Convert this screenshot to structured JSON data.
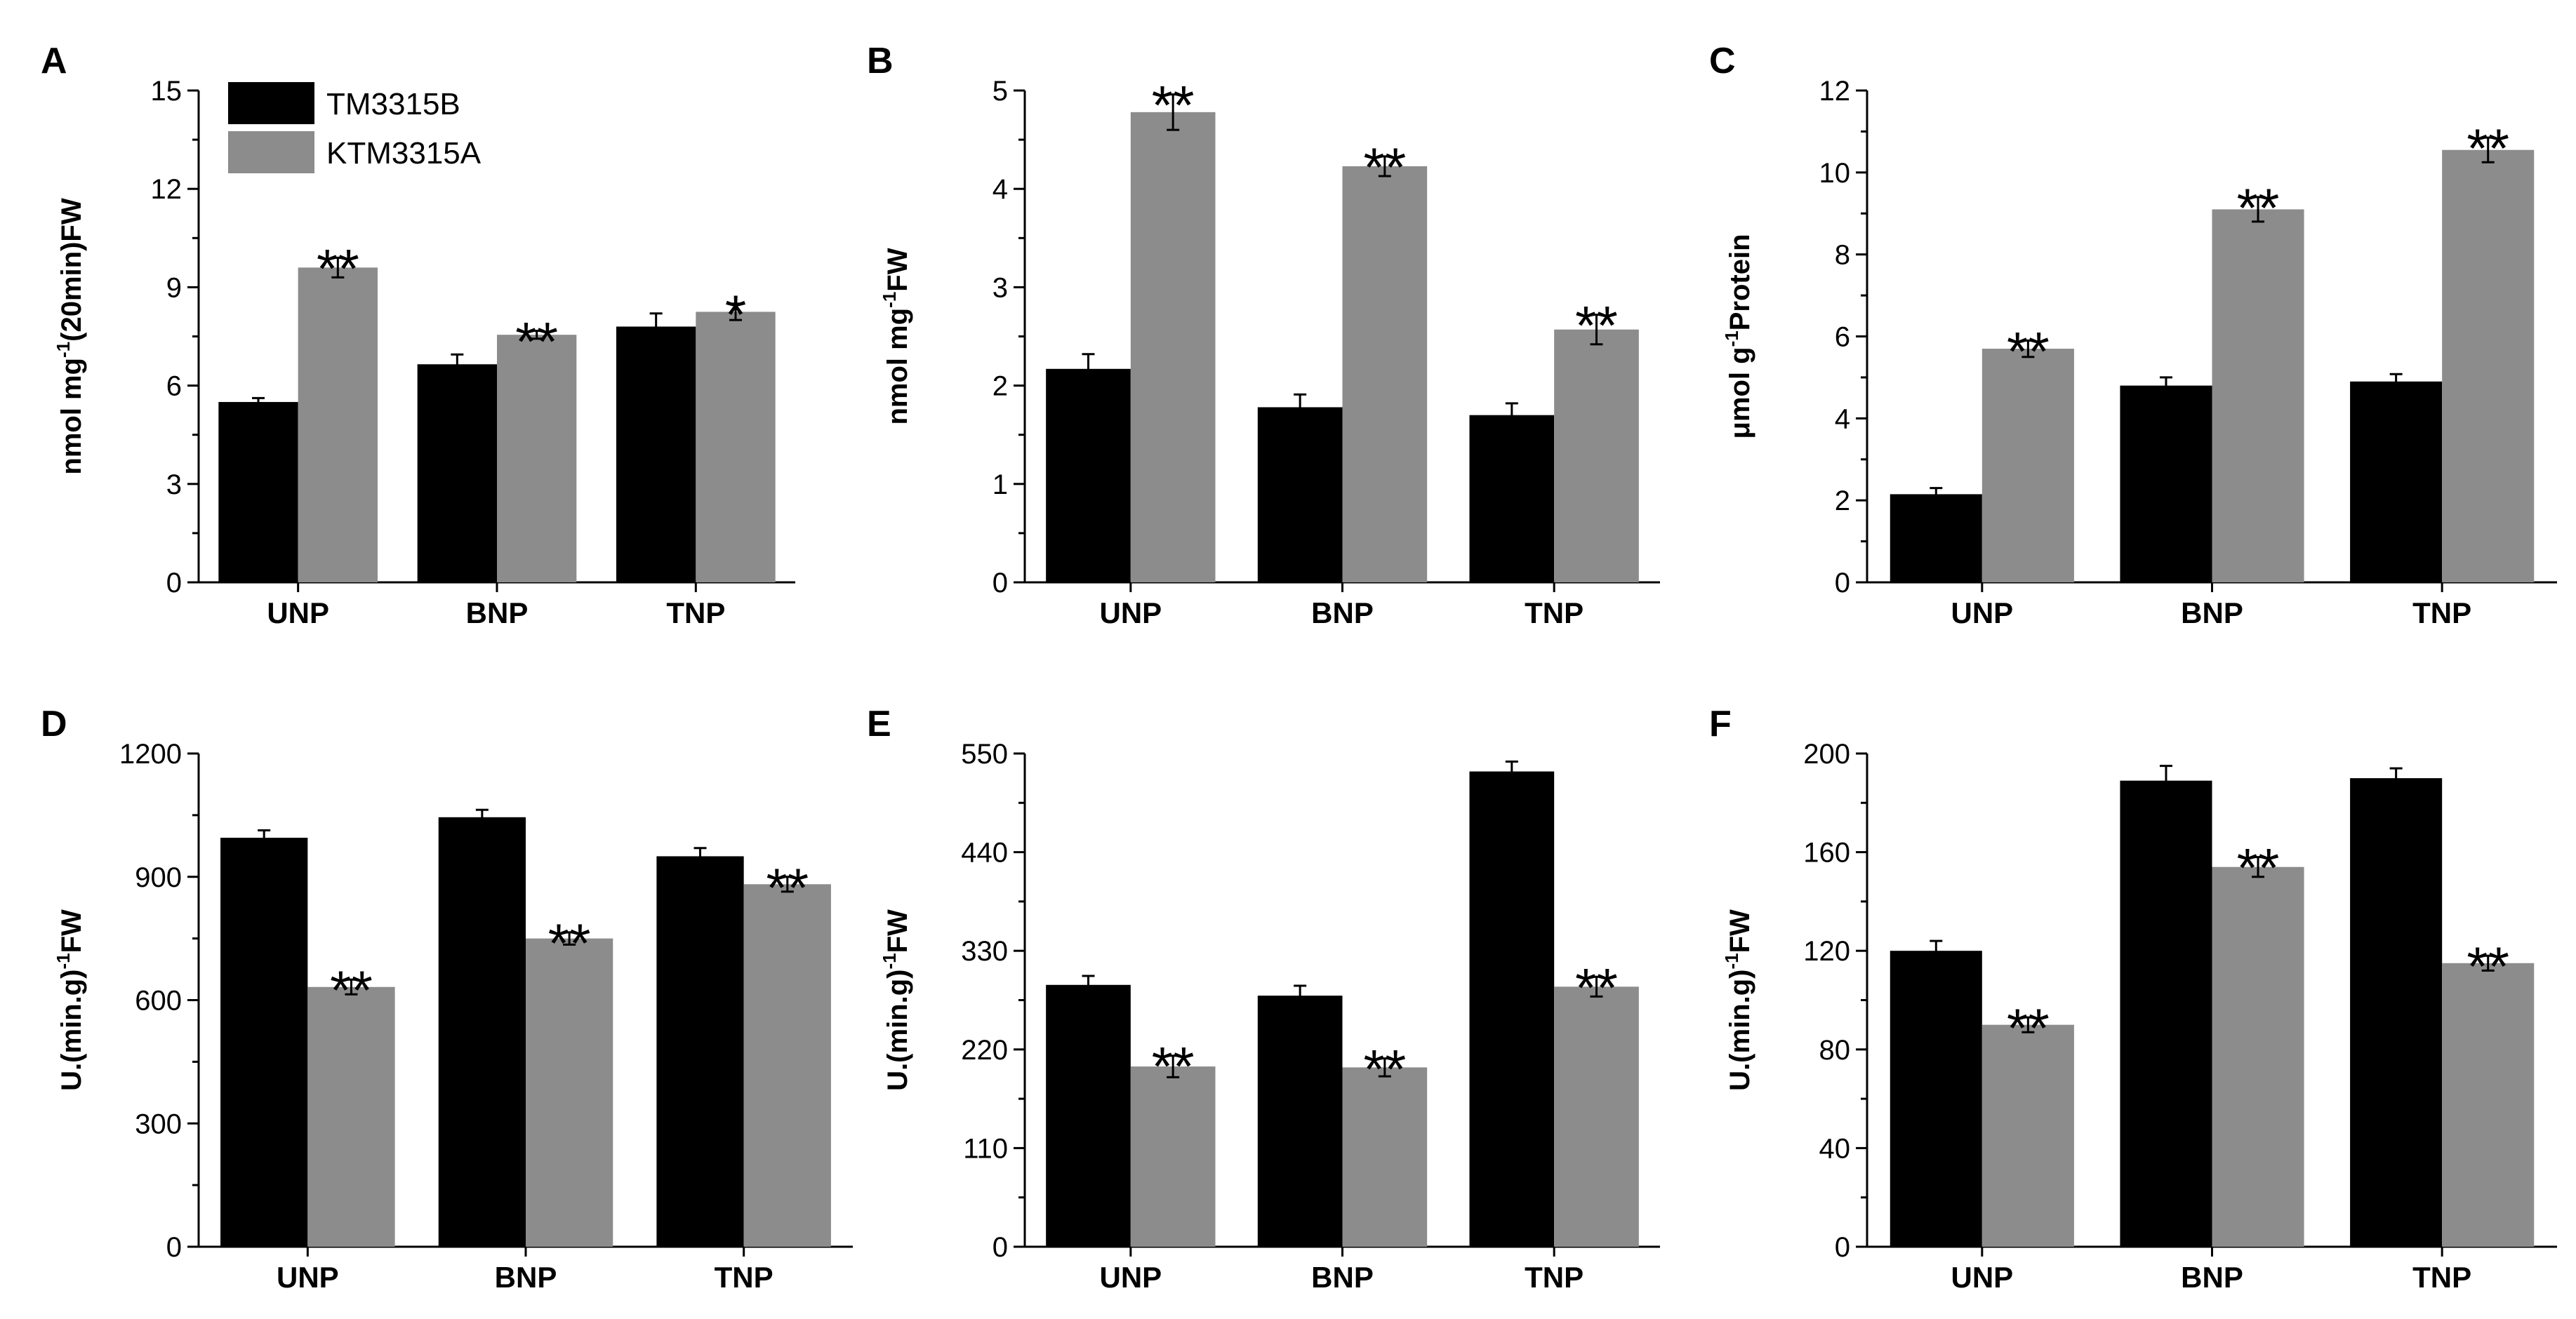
{
  "legend": [
    {
      "name": "TM3315B",
      "color": "#000000"
    },
    {
      "name": "KTM3315A",
      "color": "#8c8c8c"
    }
  ],
  "chart_data": [
    {
      "type": "bar",
      "panel": "A",
      "categories": [
        "UNP",
        "BNP",
        "TNP"
      ],
      "ylabel": {
        "pre": "nmol mg",
        "sup": "-1",
        "post": "(20min)FW"
      },
      "ylim": [
        0,
        15
      ],
      "yticks": [
        0,
        3,
        6,
        9,
        12,
        15
      ],
      "series": [
        {
          "name": "TM3315B",
          "values": [
            5.5,
            6.65,
            7.8
          ],
          "errors": [
            0.12,
            0.3,
            0.4
          ]
        },
        {
          "name": "KTM3315A",
          "values": [
            9.6,
            7.55,
            8.25
          ],
          "errors": [
            0.3,
            0.12,
            0.25
          ],
          "significance": [
            "**",
            "**",
            "*"
          ]
        }
      ]
    },
    {
      "type": "bar",
      "panel": "B",
      "categories": [
        "UNP",
        "BNP",
        "TNP"
      ],
      "ylabel": {
        "pre": "nmol mg",
        "sup": "-1",
        "post": "FW"
      },
      "ylim": [
        0,
        5
      ],
      "yticks": [
        0,
        1,
        2,
        3,
        4,
        5
      ],
      "series": [
        {
          "name": "TM3315B",
          "values": [
            2.17,
            1.78,
            1.7
          ],
          "errors": [
            0.15,
            0.13,
            0.12
          ]
        },
        {
          "name": "KTM3315A",
          "values": [
            4.78,
            4.23,
            2.57
          ],
          "errors": [
            0.18,
            0.1,
            0.15
          ],
          "significance": [
            "**",
            "**",
            "**"
          ]
        }
      ]
    },
    {
      "type": "bar",
      "panel": "C",
      "categories": [
        "UNP",
        "BNP",
        "TNP"
      ],
      "ylabel": {
        "pre": "μmol g",
        "sup": "-1",
        "post": "Protein"
      },
      "ylim": [
        0,
        12
      ],
      "yticks": [
        0,
        2,
        4,
        6,
        8,
        10,
        12
      ],
      "series": [
        {
          "name": "TM3315B",
          "values": [
            2.15,
            4.8,
            4.9
          ],
          "errors": [
            0.15,
            0.2,
            0.18
          ]
        },
        {
          "name": "KTM3315A",
          "values": [
            5.7,
            9.1,
            10.55
          ],
          "errors": [
            0.2,
            0.3,
            0.3
          ],
          "significance": [
            "**",
            "**",
            "**"
          ]
        }
      ]
    },
    {
      "type": "bar",
      "panel": "D",
      "categories": [
        "UNP",
        "BNP",
        "TNP"
      ],
      "ylabel": {
        "pre": "U.(min.g)",
        "sup": "-1",
        "post": "FW"
      },
      "ylim": [
        0,
        1200
      ],
      "yticks": [
        0,
        300,
        600,
        900,
        1200
      ],
      "series": [
        {
          "name": "TM3315B",
          "values": [
            995,
            1045,
            950
          ],
          "errors": [
            18,
            18,
            20
          ]
        },
        {
          "name": "KTM3315A",
          "values": [
            632,
            750,
            882
          ],
          "errors": [
            18,
            15,
            18
          ],
          "significance": [
            "**",
            "**",
            "**"
          ]
        }
      ]
    },
    {
      "type": "bar",
      "panel": "E",
      "categories": [
        "UNP",
        "BNP",
        "TNP"
      ],
      "ylabel": {
        "pre": "U.(min.g)",
        "sup": "-1",
        "post": "FW"
      },
      "ylim": [
        0,
        550
      ],
      "yticks": [
        0,
        110,
        220,
        330,
        440,
        550
      ],
      "series": [
        {
          "name": "TM3315B",
          "values": [
            292,
            280,
            530
          ],
          "errors": [
            10,
            11,
            11
          ]
        },
        {
          "name": "KTM3315A",
          "values": [
            201,
            200,
            290
          ],
          "errors": [
            12,
            10,
            11
          ],
          "significance": [
            "**",
            "**",
            "**"
          ]
        }
      ]
    },
    {
      "type": "bar",
      "panel": "F",
      "categories": [
        "UNP",
        "BNP",
        "TNP"
      ],
      "ylabel": {
        "pre": "U.(min.g)",
        "sup": "-1",
        "post": "FW"
      },
      "ylim": [
        0,
        200
      ],
      "yticks": [
        0,
        40,
        80,
        120,
        160,
        200
      ],
      "series": [
        {
          "name": "TM3315B",
          "values": [
            120,
            189,
            190
          ],
          "errors": [
            4,
            6,
            4
          ]
        },
        {
          "name": "KTM3315A",
          "values": [
            90,
            154,
            115
          ],
          "errors": [
            3,
            4,
            3
          ],
          "significance": [
            "**",
            "**",
            "**"
          ]
        }
      ]
    }
  ]
}
